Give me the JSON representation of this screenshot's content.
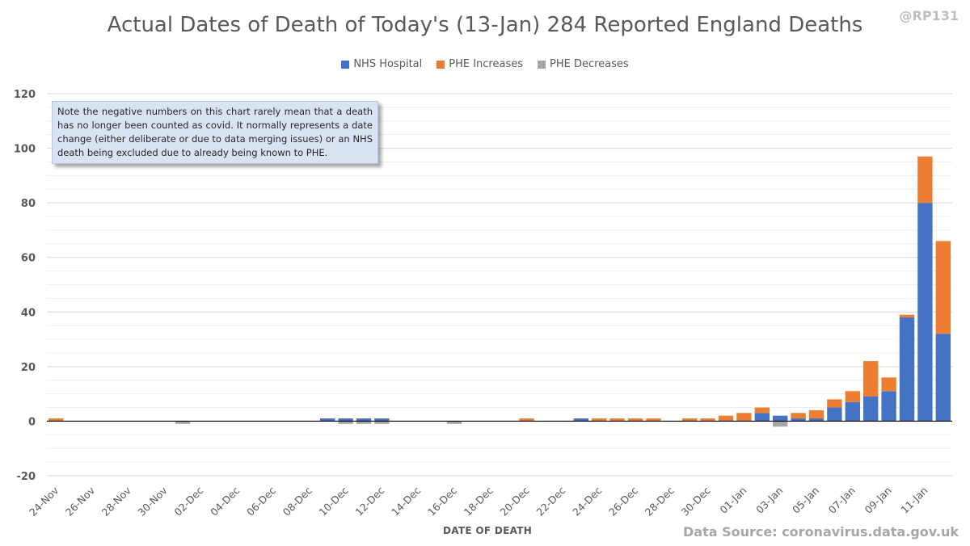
{
  "handle": "@RP131",
  "source": "Data Source: coronavirus.data.gov.uk",
  "note": "Note the negative numbers on this chart rarely mean that a death has no longer been counted as covid. It normally represents a date change (either deliberate or due to data merging issues) or an NHS death being excluded due to already being known to PHE.",
  "colors": {
    "nhs": "#4472c4",
    "phe_inc": "#ed7d31",
    "phe_dec": "#a5a5a5",
    "text": "#595959",
    "grid": "#d9d9d9"
  },
  "chart_data": {
    "type": "bar",
    "stacked": true,
    "title": "Actual Dates of Death of Today's (13-Jan) 284 Reported England Deaths",
    "xlabel": "DATE OF DEATH",
    "ylabel": "",
    "ylim": [
      -20,
      120
    ],
    "yticks": [
      -20,
      0,
      20,
      40,
      60,
      80,
      100,
      120
    ],
    "grid": true,
    "legend_position": "top-center",
    "categories": [
      "24-Nov",
      "25-Nov",
      "26-Nov",
      "27-Nov",
      "28-Nov",
      "29-Nov",
      "30-Nov",
      "01-Dec",
      "02-Dec",
      "03-Dec",
      "04-Dec",
      "05-Dec",
      "06-Dec",
      "07-Dec",
      "08-Dec",
      "09-Dec",
      "10-Dec",
      "11-Dec",
      "12-Dec",
      "13-Dec",
      "14-Dec",
      "15-Dec",
      "16-Dec",
      "17-Dec",
      "18-Dec",
      "19-Dec",
      "20-Dec",
      "21-Dec",
      "22-Dec",
      "23-Dec",
      "24-Dec",
      "25-Dec",
      "26-Dec",
      "27-Dec",
      "28-Dec",
      "29-Dec",
      "30-Dec",
      "31-Dec",
      "01-Jan",
      "02-Jan",
      "03-Jan",
      "04-Jan",
      "05-Jan",
      "06-Jan",
      "07-Jan",
      "08-Jan",
      "09-Jan",
      "10-Jan",
      "11-Jan",
      "12-Jan"
    ],
    "tick_labels": [
      "24-Nov",
      "26-Nov",
      "28-Nov",
      "30-Nov",
      "02-Dec",
      "04-Dec",
      "06-Dec",
      "08-Dec",
      "10-Dec",
      "12-Dec",
      "14-Dec",
      "16-Dec",
      "18-Dec",
      "20-Dec",
      "22-Dec",
      "24-Dec",
      "26-Dec",
      "28-Dec",
      "30-Dec",
      "01-Jan",
      "03-Jan",
      "05-Jan",
      "07-Jan",
      "09-Jan",
      "11-Jan"
    ],
    "series": [
      {
        "name": "NHS Hospital",
        "values": [
          0,
          0,
          0,
          0,
          0,
          0,
          0,
          0,
          0,
          0,
          0,
          0,
          0,
          0,
          0,
          1,
          1,
          1,
          1,
          0,
          0,
          0,
          0,
          0,
          0,
          0,
          0,
          0,
          0,
          1,
          0,
          0,
          0,
          0,
          0,
          0,
          0,
          0,
          0,
          3,
          2,
          1,
          1,
          5,
          7,
          9,
          11,
          38,
          80,
          32
        ]
      },
      {
        "name": "PHE Increases",
        "values": [
          1,
          0,
          0,
          0,
          0,
          0,
          0,
          0,
          0,
          0,
          0,
          0,
          0,
          0,
          0,
          0,
          0,
          0,
          0,
          0,
          0,
          0,
          0,
          0,
          0,
          0,
          1,
          0,
          0,
          0,
          1,
          1,
          1,
          1,
          0,
          1,
          1,
          2,
          3,
          2,
          0,
          2,
          3,
          3,
          4,
          13,
          5,
          1,
          17,
          34
        ]
      },
      {
        "name": "PHE Decreases",
        "values": [
          0,
          0,
          0,
          0,
          0,
          0,
          0,
          -1,
          0,
          0,
          0,
          0,
          0,
          0,
          0,
          0,
          -1,
          -1,
          -1,
          0,
          0,
          0,
          -1,
          0,
          0,
          0,
          0,
          0,
          0,
          0,
          0,
          0,
          0,
          0,
          0,
          0,
          0,
          0,
          0,
          0,
          -2,
          0,
          0,
          0,
          0,
          0,
          0,
          0,
          0,
          0
        ]
      }
    ]
  }
}
